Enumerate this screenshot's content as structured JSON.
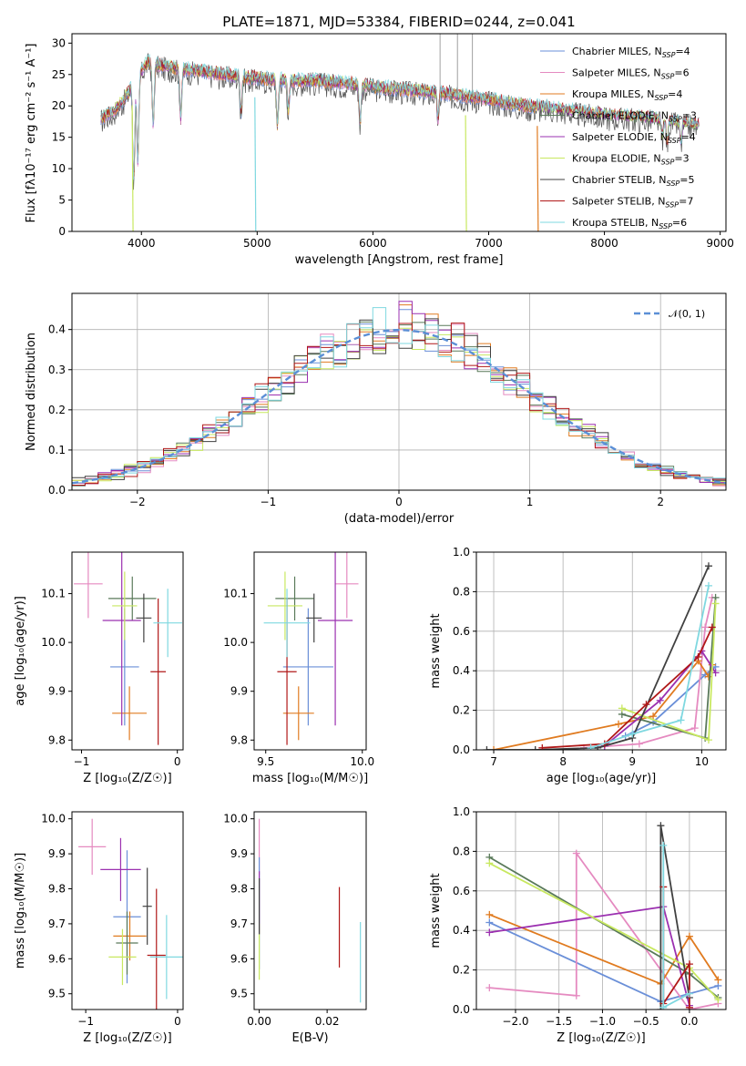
{
  "figure_title": "PLATE=1871, MJD=53384, FIBERID=0244, z=0.041",
  "colors": {
    "chabrier_miles": "#6a8fd8",
    "salpeter_miles": "#e58ac0",
    "kroupa_miles": "#e07b20",
    "chabrier_elodie": "#5a7a5a",
    "salpeter_elodie": "#9b30b0",
    "kroupa_elodie": "#c8e860",
    "chabrier_stelib": "#404040",
    "salpeter_stelib": "#b01818",
    "kroupa_stelib": "#7fd8e0",
    "normal": "#5b8fd6"
  },
  "chart_data": [
    {
      "id": "spectrum",
      "type": "line",
      "title": "PLATE=1871, MJD=53384, FIBERID=0244, z=0.041",
      "xlabel": "wavelength [Angstrom, rest frame]",
      "ylabel_text": "Flux [fλ10⁻¹⁷ erg cm⁻² s⁻¹ A⁻¹]",
      "xlim": [
        3400,
        9050
      ],
      "ylim": [
        0,
        31.5
      ],
      "xticks": [
        4000,
        5000,
        6000,
        7000,
        8000,
        9000
      ],
      "yticks": [
        0,
        5,
        10,
        15,
        20,
        25,
        30
      ],
      "grid": false,
      "legend_position": "top-right",
      "legend": [
        {
          "name": "Chabrier MILES, N",
          "sub": "SSP",
          "suffix": "=4",
          "color_key": "chabrier_miles"
        },
        {
          "name": "Salpeter MILES, N",
          "sub": "SSP",
          "suffix": "=6",
          "color_key": "salpeter_miles"
        },
        {
          "name": "Kroupa MILES, N",
          "sub": "SSP",
          "suffix": "=4",
          "color_key": "kroupa_miles"
        },
        {
          "name": "Chabrier ELODIE, N",
          "sub": "SSP",
          "suffix": "=3",
          "color_key": "chabrier_elodie"
        },
        {
          "name": "Salpeter ELODIE, N",
          "sub": "SSP",
          "suffix": "=4",
          "color_key": "salpeter_elodie"
        },
        {
          "name": "Kroupa ELODIE, N",
          "sub": "SSP",
          "suffix": "=3",
          "color_key": "kroupa_elodie"
        },
        {
          "name": "Chabrier STELIB, N",
          "sub": "SSP",
          "suffix": "=5",
          "color_key": "chabrier_stelib"
        },
        {
          "name": "Salpeter STELIB, N",
          "sub": "SSP",
          "suffix": "=7",
          "color_key": "salpeter_stelib"
        },
        {
          "name": "Kroupa STELIB, N",
          "sub": "SSP",
          "suffix": "=6",
          "color_key": "kroupa_stelib"
        }
      ],
      "continuum": {
        "x": [
          3650,
          3750,
          3850,
          3950,
          4050,
          4150,
          4300,
          4500,
          4700,
          4900,
          5100,
          5300,
          5500,
          5800,
          6000,
          6300,
          6600,
          6800,
          7000,
          7300,
          7600,
          8000,
          8400,
          8800
        ],
        "y": [
          18,
          19,
          21,
          24,
          27,
          26.5,
          26,
          25.5,
          25,
          24.5,
          24.2,
          24,
          24,
          23.5,
          23,
          22.5,
          22,
          21.5,
          21,
          20,
          19.5,
          18.5,
          18,
          17
        ]
      },
      "absorption_dips": [
        {
          "x": 3934,
          "y": 8
        },
        {
          "x": 3969,
          "y": 11
        },
        {
          "x": 4102,
          "y": 17
        },
        {
          "x": 4340,
          "y": 18
        },
        {
          "x": 4861,
          "y": 19
        },
        {
          "x": 5175,
          "y": 17
        },
        {
          "x": 5270,
          "y": 19
        },
        {
          "x": 5890,
          "y": 17
        },
        {
          "x": 6563,
          "y": 18
        },
        {
          "x": 8500,
          "y": 15
        },
        {
          "x": 8542,
          "y": 14
        },
        {
          "x": 8662,
          "y": 14
        }
      ],
      "drops_to_zero": [
        {
          "x": 3920,
          "color_key": "kroupa_elodie"
        },
        {
          "x": 4980,
          "color_key": "kroupa_stelib"
        },
        {
          "x": 6800,
          "color_key": "kroupa_elodie"
        },
        {
          "x": 7420,
          "color_key": "kroupa_miles"
        }
      ],
      "spikes": [
        {
          "x": 6580,
          "y": 31.5
        },
        {
          "x": 6730,
          "y": 31.5
        },
        {
          "x": 6860,
          "y": 31.5
        }
      ]
    },
    {
      "id": "residuals",
      "type": "step",
      "xlabel": "(data-model)/error",
      "ylabel": "Normed distribution",
      "xlim": [
        -2.5,
        2.5
      ],
      "ylim": [
        0,
        0.49
      ],
      "xticks": [
        -2,
        -1,
        0,
        1,
        2
      ],
      "yticks": [
        0.0,
        0.1,
        0.2,
        0.3,
        0.4
      ],
      "grid": true,
      "legend_position": "top-right",
      "legend": [
        {
          "name": "𝒩(0, 1)",
          "color_key": "normal",
          "dashed": true
        }
      ],
      "bin_width": 0.1
    },
    {
      "id": "age_vs_Z",
      "type": "errorbar",
      "xlabel": "Z [log₁₀(Z/Z☉)]",
      "ylabel": "age  [log₁₀(age/yr)]",
      "xlim": [
        -1.1,
        0.06
      ],
      "ylim": [
        9.78,
        10.185
      ],
      "xticks": [
        -1,
        0
      ],
      "yticks": [
        9.8,
        9.9,
        10.0,
        10.1
      ],
      "grid": false,
      "points": [
        {
          "x": -0.55,
          "xerr": 0.15,
          "y": 9.95,
          "yerr": 0.12,
          "color_key": "chabrier_miles"
        },
        {
          "x": -0.93,
          "xerr": 0.15,
          "y": 10.12,
          "yerr": 0.07,
          "color_key": "salpeter_miles"
        },
        {
          "x": -0.5,
          "xerr": 0.18,
          "y": 9.855,
          "yerr": 0.055,
          "color_key": "kroupa_miles"
        },
        {
          "x": -0.47,
          "xerr": 0.25,
          "y": 10.09,
          "yerr": 0.045,
          "color_key": "chabrier_elodie"
        },
        {
          "x": -0.58,
          "xerr": 0.2,
          "y": 10.045,
          "yerr": 0.215,
          "color_key": "salpeter_elodie"
        },
        {
          "x": -0.55,
          "xerr": 0.13,
          "y": 10.075,
          "yerr": 0.07,
          "color_key": "kroupa_elodie"
        },
        {
          "x": -0.35,
          "xerr": 0.08,
          "y": 10.05,
          "yerr": 0.05,
          "color_key": "chabrier_stelib"
        },
        {
          "x": -0.2,
          "xerr": 0.08,
          "y": 9.94,
          "yerr": 0.15,
          "color_key": "salpeter_stelib"
        },
        {
          "x": -0.1,
          "xerr": 0.15,
          "y": 10.04,
          "yerr": 0.07,
          "color_key": "kroupa_stelib"
        }
      ]
    },
    {
      "id": "age_vs_mass",
      "type": "errorbar",
      "xlabel": "mass [log₁₀(M/M☉)]",
      "ylabel": "",
      "xlim": [
        9.44,
        10.02
      ],
      "ylim": [
        9.78,
        10.185
      ],
      "xticks": [
        9.5,
        10.0
      ],
      "yticks": [
        9.8,
        9.9,
        10.0,
        10.1
      ],
      "grid": false,
      "points": [
        {
          "x": 9.72,
          "xerr": 0.13,
          "y": 9.95,
          "yerr": 0.12,
          "color_key": "chabrier_miles"
        },
        {
          "x": 9.92,
          "xerr": 0.06,
          "y": 10.12,
          "yerr": 0.07,
          "color_key": "salpeter_miles"
        },
        {
          "x": 9.67,
          "xerr": 0.08,
          "y": 9.855,
          "yerr": 0.055,
          "color_key": "kroupa_miles"
        },
        {
          "x": 9.65,
          "xerr": 0.1,
          "y": 10.09,
          "yerr": 0.045,
          "color_key": "chabrier_elodie"
        },
        {
          "x": 9.86,
          "xerr": 0.09,
          "y": 10.045,
          "yerr": 0.215,
          "color_key": "salpeter_elodie"
        },
        {
          "x": 9.6,
          "xerr": 0.09,
          "y": 10.075,
          "yerr": 0.07,
          "color_key": "kroupa_elodie"
        },
        {
          "x": 9.75,
          "xerr": 0.04,
          "y": 10.05,
          "yerr": 0.05,
          "color_key": "chabrier_stelib"
        },
        {
          "x": 9.61,
          "xerr": 0.05,
          "y": 9.94,
          "yerr": 0.15,
          "color_key": "salpeter_stelib"
        },
        {
          "x": 9.61,
          "xerr": 0.12,
          "y": 10.04,
          "yerr": 0.07,
          "color_key": "kroupa_stelib"
        }
      ]
    },
    {
      "id": "massweight_vs_age",
      "type": "line",
      "xlabel": "age  [log₁₀(age/yr)]",
      "ylabel": "mass weight",
      "xlim": [
        6.75,
        10.35
      ],
      "ylim": [
        0,
        1.0
      ],
      "xticks": [
        7,
        8,
        9,
        10
      ],
      "yticks": [
        0.0,
        0.2,
        0.4,
        0.6,
        0.8,
        1.0
      ],
      "grid": true,
      "series": [
        {
          "color_key": "chabrier_miles",
          "x": [
            8.9,
            9.3,
            10.05,
            10.2
          ],
          "y": [
            0.07,
            0.14,
            0.38,
            0.42
          ]
        },
        {
          "color_key": "salpeter_miles",
          "x": [
            8.3,
            9.1,
            9.9,
            10.05,
            10.15
          ],
          "y": [
            0.01,
            0.03,
            0.11,
            0.62,
            0.77
          ]
        },
        {
          "color_key": "kroupa_miles",
          "x": [
            7.0,
            8.8,
            9.3,
            9.95,
            10.1,
            10.15
          ],
          "y": [
            0.0,
            0.13,
            0.17,
            0.45,
            0.37,
            0.43
          ]
        },
        {
          "color_key": "chabrier_elodie",
          "x": [
            8.85,
            10.05,
            10.2
          ],
          "y": [
            0.18,
            0.06,
            0.77
          ]
        },
        {
          "color_key": "salpeter_elodie",
          "x": [
            8.6,
            9.4,
            10.0,
            10.2
          ],
          "y": [
            0.02,
            0.25,
            0.5,
            0.39
          ]
        },
        {
          "color_key": "kroupa_elodie",
          "x": [
            8.85,
            10.1,
            10.2
          ],
          "y": [
            0.21,
            0.05,
            0.74
          ]
        },
        {
          "color_key": "chabrier_stelib",
          "x": [
            6.9,
            7.6,
            8.5,
            9.0,
            10.1
          ],
          "y": [
            0.0,
            0.0,
            0.01,
            0.06,
            0.93
          ]
        },
        {
          "color_key": "salpeter_stelib",
          "x": [
            7.7,
            8.6,
            9.2,
            9.95,
            10.15
          ],
          "y": [
            0.01,
            0.03,
            0.23,
            0.47,
            0.62
          ]
        },
        {
          "color_key": "kroupa_stelib",
          "x": [
            8.4,
            9.0,
            9.7,
            10.1
          ],
          "y": [
            0.01,
            0.08,
            0.15,
            0.83
          ]
        }
      ]
    },
    {
      "id": "mass_vs_Z",
      "type": "errorbar",
      "xlabel": "Z [log₁₀(Z/Z☉)]",
      "ylabel": "mass [log₁₀(M/M☉)]",
      "xlim": [
        -1.15,
        0.06
      ],
      "ylim": [
        9.455,
        10.02
      ],
      "xticks": [
        -1,
        0
      ],
      "yticks": [
        9.5,
        9.6,
        9.7,
        9.8,
        9.9,
        10.0
      ],
      "grid": false,
      "points": [
        {
          "x": -0.55,
          "xerr": 0.15,
          "y": 9.72,
          "yerr": 0.19,
          "color_key": "chabrier_miles"
        },
        {
          "x": -0.93,
          "xerr": 0.15,
          "y": 9.92,
          "yerr": 0.08,
          "color_key": "salpeter_miles"
        },
        {
          "x": -0.52,
          "xerr": 0.18,
          "y": 9.665,
          "yerr": 0.07,
          "color_key": "kroupa_miles"
        },
        {
          "x": -0.55,
          "xerr": 0.12,
          "y": 9.645,
          "yerr": 0.09,
          "color_key": "chabrier_elodie"
        },
        {
          "x": -0.62,
          "xerr": 0.22,
          "y": 9.855,
          "yerr": 0.09,
          "color_key": "salpeter_elodie"
        },
        {
          "x": -0.6,
          "xerr": 0.15,
          "y": 9.605,
          "yerr": 0.08,
          "color_key": "kroupa_elodie"
        },
        {
          "x": -0.33,
          "xerr": 0.05,
          "y": 9.75,
          "yerr": 0.11,
          "color_key": "chabrier_stelib"
        },
        {
          "x": -0.23,
          "xerr": 0.1,
          "y": 9.61,
          "yerr": 0.19,
          "color_key": "salpeter_stelib"
        },
        {
          "x": -0.12,
          "xerr": 0.18,
          "y": 9.605,
          "yerr": 0.12,
          "color_key": "kroupa_stelib"
        }
      ]
    },
    {
      "id": "mass_vs_ebv",
      "type": "errorbar",
      "xlabel": "E(B-V)",
      "ylabel": "",
      "xlim": [
        -0.0015,
        0.0315
      ],
      "ylim": [
        9.455,
        10.02
      ],
      "xticks": [
        0.0,
        0.02
      ],
      "yticks": [
        9.5,
        9.6,
        9.7,
        9.8,
        9.9,
        10.0
      ],
      "grid": false,
      "points": [
        {
          "x": 0.0,
          "y": 9.92,
          "yerr": 0.08,
          "color_key": "salpeter_miles"
        },
        {
          "x": 0.0,
          "y": 9.73,
          "yerr": 0.16,
          "color_key": "chabrier_miles"
        },
        {
          "x": 0.0,
          "y": 9.76,
          "yerr": 0.09,
          "color_key": "salpeter_elodie"
        },
        {
          "x": 0.0,
          "y": 9.62,
          "yerr": 0.08,
          "color_key": "kroupa_elodie"
        },
        {
          "x": 0.0,
          "y": 9.75,
          "yerr": 0.08,
          "color_key": "chabrier_stelib"
        },
        {
          "x": 0.0236,
          "y": 9.69,
          "yerr": 0.115,
          "color_key": "salpeter_stelib"
        },
        {
          "x": 0.0298,
          "y": 9.59,
          "yerr": 0.115,
          "color_key": "kroupa_stelib"
        }
      ]
    },
    {
      "id": "massweight_vs_Z",
      "type": "line",
      "xlabel": "Z [log₁₀(Z/Z☉)]",
      "ylabel": "mass weight",
      "xlim": [
        -2.45,
        0.42
      ],
      "ylim": [
        0,
        1.0
      ],
      "xticks": [
        -2.0,
        -1.5,
        -1.0,
        -0.5,
        0.0
      ],
      "yticks": [
        0.0,
        0.2,
        0.4,
        0.6,
        0.8,
        1.0
      ],
      "grid": true,
      "series": [
        {
          "color_key": "chabrier_miles",
          "x": [
            -2.3,
            -0.33,
            0.33
          ],
          "y": [
            0.44,
            0.04,
            0.12
          ]
        },
        {
          "color_key": "salpeter_miles",
          "x": [
            -2.3,
            -1.3,
            -1.3,
            0.0,
            0.33
          ],
          "y": [
            0.11,
            0.07,
            0.79,
            0.0,
            0.03
          ]
        },
        {
          "color_key": "kroupa_miles",
          "x": [
            -2.3,
            -0.33,
            0.0,
            0.33
          ],
          "y": [
            0.48,
            0.13,
            0.37,
            0.15
          ]
        },
        {
          "color_key": "chabrier_elodie",
          "x": [
            -2.3,
            0.0,
            0.33
          ],
          "y": [
            0.77,
            0.18,
            0.06
          ]
        },
        {
          "color_key": "salpeter_elodie",
          "x": [
            -2.3,
            -0.3,
            0.0
          ],
          "y": [
            0.39,
            0.52,
            0.02
          ]
        },
        {
          "color_key": "kroupa_elodie",
          "x": [
            -2.3,
            0.0,
            0.33
          ],
          "y": [
            0.74,
            0.21,
            0.05
          ]
        },
        {
          "color_key": "chabrier_stelib",
          "x": [
            -0.33,
            -0.33,
            0.0
          ],
          "y": [
            0.0,
            0.93,
            0.06
          ]
        },
        {
          "color_key": "salpeter_stelib",
          "x": [
            -0.3,
            -0.3,
            0.0,
            0.0
          ],
          "y": [
            0.62,
            0.03,
            0.23,
            0.01
          ]
        },
        {
          "color_key": "kroupa_stelib",
          "x": [
            -0.3,
            -0.3,
            0.0
          ],
          "y": [
            0.83,
            0.01,
            0.08
          ]
        }
      ]
    }
  ]
}
